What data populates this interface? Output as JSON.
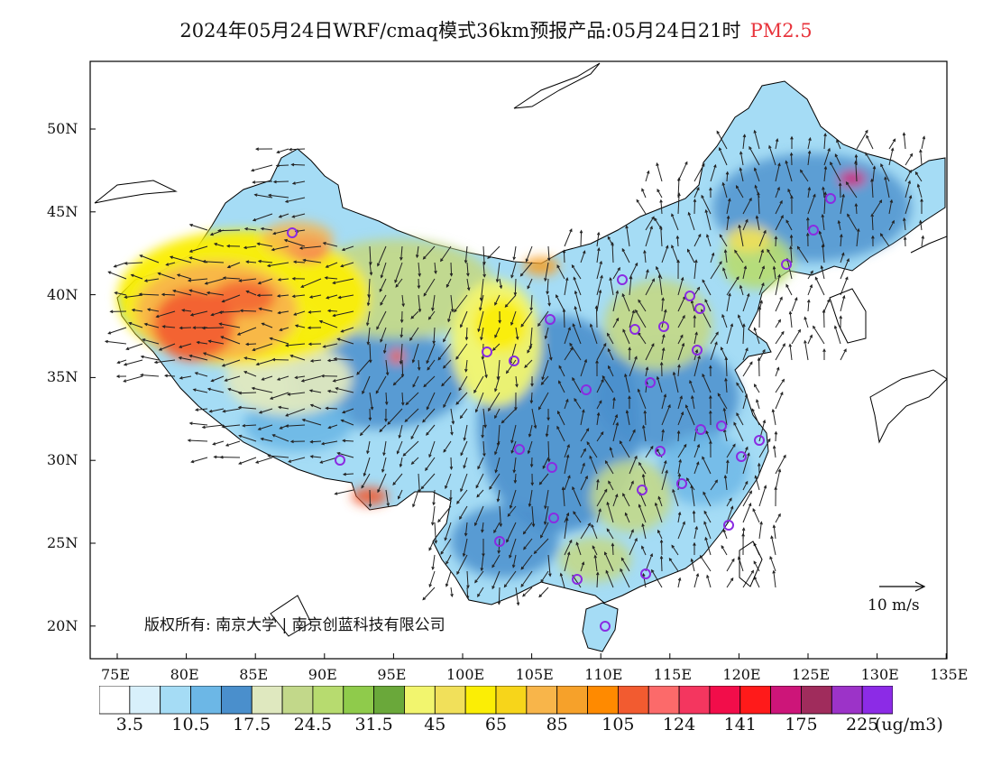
{
  "title": {
    "text": "2024年05月24日WRF/cmaq模式36km预报产品:05月24日21时",
    "variable": "PM2.5",
    "variable_color": "#e8343c"
  },
  "x_axis_labels": [
    "75E",
    "80E",
    "85E",
    "90E",
    "95E",
    "100E",
    "105E",
    "110E",
    "115E",
    "120E",
    "125E",
    "130E",
    "135E"
  ],
  "y_axis_labels": [
    "50N",
    "45N",
    "40N",
    "35N",
    "30N",
    "25N",
    "20N"
  ],
  "colorbar": {
    "colors": [
      "#ffffff",
      "#d8f0fb",
      "#a5dcf5",
      "#6cb7e6",
      "#4a8fcc",
      "#dfe8bf",
      "#c2d88a",
      "#b7db6f",
      "#8fcb4b",
      "#6aa83a",
      "#f2f56e",
      "#f1e05a",
      "#fbee05",
      "#f7d51a",
      "#f8b54a",
      "#f6a12a",
      "#ff8a00",
      "#f25b30",
      "#fc6a6a",
      "#f4365f",
      "#f20d4a",
      "#ff1a1a",
      "#cd1579",
      "#a02c5c",
      "#9c33c8",
      "#8c2be6"
    ],
    "labels": [
      "3.5",
      "10.5",
      "17.5",
      "24.5",
      "31.5",
      "45",
      "65",
      "85",
      "105",
      "124",
      "141",
      "175",
      "225"
    ],
    "unit": "(ug/m3)"
  },
  "copyright": "版权所有: 南京大学 | 南京创蓝科技有限公司",
  "wind_reference": "10 m/s",
  "colors": {
    "frame": "#000000",
    "station_marker": "#8a2be2",
    "arrow": "#222222",
    "coast": "#000000"
  }
}
